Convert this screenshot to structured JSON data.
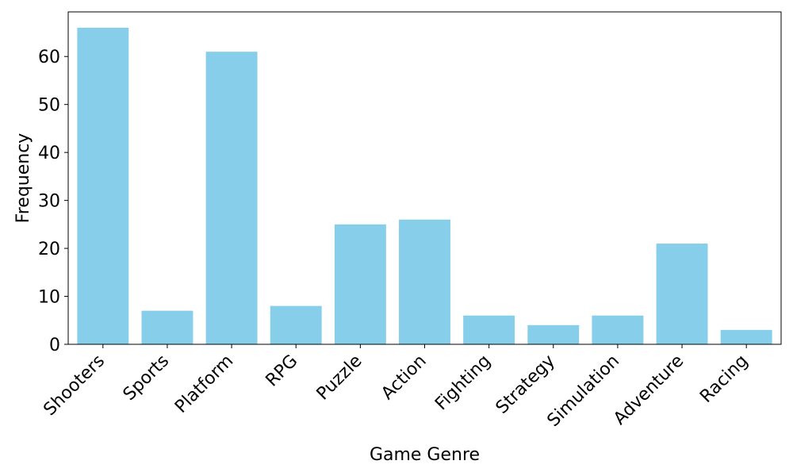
{
  "chart_data": {
    "type": "bar",
    "title": "",
    "xlabel": "Game Genre",
    "ylabel": "Frequency",
    "categories": [
      "Shooters",
      "Sports",
      "Platform",
      "RPG",
      "Puzzle",
      "Action",
      "Fighting",
      "Strategy",
      "Simulation",
      "Adventure",
      "Racing"
    ],
    "values": [
      66,
      7,
      61,
      8,
      25,
      26,
      6,
      4,
      6,
      21,
      3
    ],
    "ylim": [
      0,
      69.3
    ],
    "yticks": [
      0,
      10,
      20,
      30,
      40,
      50,
      60
    ],
    "grid": false,
    "legend": "none",
    "bar_color": "#87ceeb",
    "axis_color": "#000000"
  }
}
